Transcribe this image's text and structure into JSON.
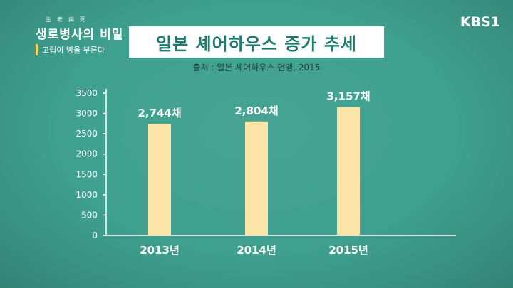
{
  "logo": {
    "small": "生老病死",
    "main": "생로병사의 비밀",
    "sub": "고립이 병을 부른다"
  },
  "broadcaster": "KBS1",
  "chart_data": {
    "type": "bar",
    "title": "일본 셰어하우스 증가 추세",
    "subtitle": "출처 : 일본 셰어하우스 연맹, 2015",
    "categories": [
      "2013년",
      "2014년",
      "2015년"
    ],
    "values": [
      2744,
      2804,
      3157
    ],
    "data_labels": [
      "2,744채",
      "2,804채",
      "3,157채"
    ],
    "yticks": [
      0,
      500,
      1000,
      1500,
      2000,
      2500,
      3000,
      3500
    ],
    "ylim": [
      0,
      3500
    ],
    "xlabel": "",
    "ylabel": "",
    "grid": false,
    "bar_color": "#fde5a9"
  }
}
